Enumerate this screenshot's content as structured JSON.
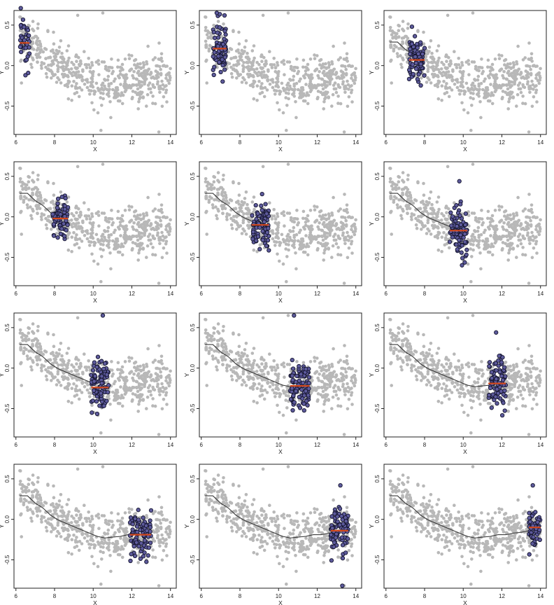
{
  "chart_data": {
    "type": "scatter",
    "layout": "4 rows x 3 columns small multiples",
    "xlabel": "X",
    "ylabel": "Y",
    "xlim": [
      5.9,
      14.3
    ],
    "ylim": [
      -0.85,
      0.68
    ],
    "x_ticks": [
      6,
      8,
      10,
      12,
      14
    ],
    "y_ticks": [
      -0.5,
      0.0,
      0.5
    ],
    "y_tick_labels": [
      "-0.5",
      "0.0",
      "0.5"
    ],
    "grid": false,
    "legend": "none",
    "colors": {
      "background_points": "#b8b8b8",
      "highlight_fill": "#5d5a9c",
      "highlight_edge": "#15152e",
      "local_mean_line": "#d2481c",
      "smooth_curve": "#3a3a3a"
    },
    "background_cloud": {
      "n_points": 520,
      "x_range": [
        6.2,
        14.0
      ],
      "trend": "smooth decline from about 0.30 at x=6.2 to about -0.22 near x=10.5, then flat around -0.15 to -0.10",
      "outliers": [
        [
          10.5,
          0.65
        ],
        [
          9.2,
          0.62
        ],
        [
          13.4,
          -0.82
        ],
        [
          10.4,
          -0.8
        ]
      ]
    },
    "smooth_curve": {
      "x": [
        6.2,
        6.6,
        7.0,
        7.4,
        7.8,
        8.2,
        8.6,
        9.0,
        9.4,
        9.8,
        10.2,
        10.6,
        11.0,
        11.4,
        11.8,
        12.2,
        12.6,
        13.0,
        13.4,
        13.8
      ],
      "y": [
        0.29,
        0.29,
        0.2,
        0.14,
        0.05,
        -0.01,
        -0.05,
        -0.09,
        -0.13,
        -0.17,
        -0.21,
        -0.23,
        -0.22,
        -0.21,
        -0.19,
        -0.19,
        -0.17,
        -0.16,
        -0.14,
        -0.12
      ]
    },
    "panels": [
      {
        "window": [
          6.2,
          6.7
        ],
        "local_mean": 0.28,
        "spread": 0.14,
        "n": 38,
        "curve_to": 6.2
      },
      {
        "window": [
          6.6,
          7.3
        ],
        "local_mean": 0.21,
        "spread": 0.17,
        "n": 75,
        "curve_to": 6.2
      },
      {
        "window": [
          7.2,
          8.0
        ],
        "local_mean": 0.07,
        "spread": 0.13,
        "n": 85,
        "curve_to": 7.2
      },
      {
        "window": [
          7.9,
          8.7
        ],
        "local_mean": -0.02,
        "spread": 0.12,
        "n": 70,
        "curve_to": 7.9
      },
      {
        "window": [
          8.6,
          9.5
        ],
        "local_mean": -0.1,
        "spread": 0.15,
        "n": 90,
        "curve_to": 8.6
      },
      {
        "window": [
          9.3,
          10.2
        ],
        "local_mean": -0.17,
        "spread": 0.15,
        "n": 90,
        "curve_to": 9.3
      },
      {
        "window": [
          9.9,
          10.8
        ],
        "local_mean": -0.24,
        "spread": 0.17,
        "n": 95,
        "curve_to": 9.9
      },
      {
        "window": [
          10.6,
          11.6
        ],
        "local_mean": -0.22,
        "spread": 0.15,
        "n": 95,
        "curve_to": 10.6
      },
      {
        "window": [
          11.3,
          12.2
        ],
        "local_mean": -0.19,
        "spread": 0.15,
        "n": 90,
        "curve_to": 11.3
      },
      {
        "window": [
          11.9,
          13.0
        ],
        "local_mean": -0.19,
        "spread": 0.14,
        "n": 95,
        "curve_to": 11.9
      },
      {
        "window": [
          12.7,
          13.6
        ],
        "local_mean": -0.14,
        "spread": 0.13,
        "n": 85,
        "curve_to": 12.7
      },
      {
        "window": [
          13.4,
          14.0
        ],
        "local_mean": -0.1,
        "spread": 0.1,
        "n": 60,
        "curve_to": 13.4
      }
    ],
    "highlight_outliers": [
      {
        "panel": 2,
        "x": 6.8,
        "y": 0.65
      },
      {
        "panel": 6,
        "x": 9.8,
        "y": 0.44
      },
      {
        "panel": 7,
        "x": 10.5,
        "y": 0.65
      },
      {
        "panel": 8,
        "x": 10.8,
        "y": 0.65
      },
      {
        "panel": 9,
        "x": 11.7,
        "y": 0.44
      },
      {
        "panel": 11,
        "x": 13.2,
        "y": 0.42
      },
      {
        "panel": 11,
        "x": 13.3,
        "y": -0.82
      },
      {
        "panel": 12,
        "x": 13.6,
        "y": 0.42
      }
    ]
  }
}
